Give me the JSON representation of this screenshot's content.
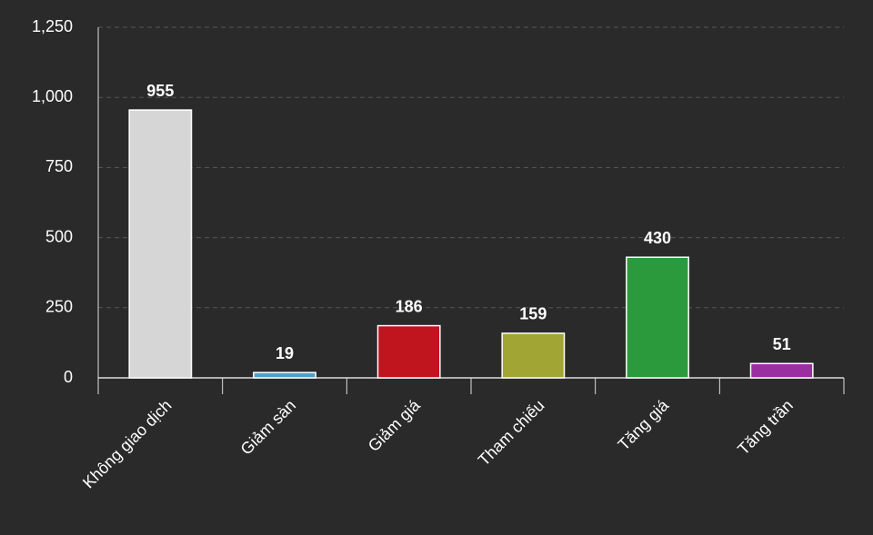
{
  "chart_data": {
    "type": "bar",
    "categories": [
      "Không giao dịch",
      "Giảm sàn",
      "Giảm giá",
      "Tham chiếu",
      "Tăng giá",
      "Tăng trần"
    ],
    "values": [
      955,
      19,
      186,
      159,
      430,
      51
    ],
    "colors": [
      "#d6d6d6",
      "#4f9fc8",
      "#c0141f",
      "#a0a533",
      "#2a9a3c",
      "#9b2ea0"
    ],
    "ylim": [
      0,
      1250
    ],
    "yticks": [
      0,
      250,
      500,
      750,
      {
        "value": 1000,
        "label": "1,000"
      },
      {
        "value": 1250,
        "label": "1,250"
      }
    ],
    "grid": true
  }
}
